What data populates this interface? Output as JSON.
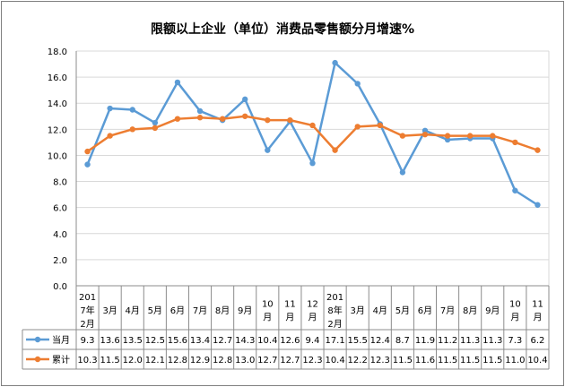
{
  "chart_data": {
    "type": "line",
    "title": "限额以上企业（单位）消费品零售额分月增速%",
    "categories": [
      [
        "201",
        "7年",
        "2月"
      ],
      [
        "3月"
      ],
      [
        "4月"
      ],
      [
        "5月"
      ],
      [
        "6月"
      ],
      [
        "7月"
      ],
      [
        "8月"
      ],
      [
        "9月"
      ],
      [
        "10",
        "月"
      ],
      [
        "11",
        "月"
      ],
      [
        "12",
        "月"
      ],
      [
        "201",
        "8年",
        "2月"
      ],
      [
        "3月"
      ],
      [
        "4月"
      ],
      [
        "5月"
      ],
      [
        "6月"
      ],
      [
        "7月"
      ],
      [
        "8月"
      ],
      [
        "9月"
      ],
      [
        "10",
        "月"
      ],
      [
        "11",
        "月"
      ]
    ],
    "ylim": [
      0,
      18
    ],
    "yticks": [
      "0.0",
      "2.0",
      "4.0",
      "6.0",
      "8.0",
      "10.0",
      "12.0",
      "14.0",
      "16.0",
      "18.0"
    ],
    "grid": true,
    "legend": "table",
    "series": [
      {
        "name": "当月",
        "color": "#5b9bd5",
        "values": [
          9.3,
          13.6,
          13.5,
          12.5,
          15.6,
          13.4,
          12.7,
          14.3,
          10.4,
          12.6,
          9.4,
          17.1,
          15.5,
          12.4,
          8.7,
          11.9,
          11.2,
          11.3,
          11.3,
          7.3,
          6.2
        ],
        "labels": [
          "9.3",
          "13.6",
          "13.5",
          "12.5",
          "15.6",
          "13.4",
          "12.7",
          "14.3",
          "10.4",
          "12.6",
          "9.4",
          "17.1",
          "15.5",
          "12.4",
          "8.7",
          "11.9",
          "11.2",
          "11.3",
          "11.3",
          "7.3",
          "6.2"
        ]
      },
      {
        "name": "累计",
        "color": "#ed7d31",
        "values": [
          10.3,
          11.5,
          12.0,
          12.1,
          12.8,
          12.9,
          12.8,
          13.0,
          12.7,
          12.7,
          12.3,
          10.4,
          12.2,
          12.3,
          11.5,
          11.6,
          11.5,
          11.5,
          11.5,
          11.0,
          10.4
        ],
        "labels": [
          "10.3",
          "11.5",
          "12.0",
          "12.1",
          "12.8",
          "12.9",
          "12.8",
          "13.0",
          "12.7",
          "12.7",
          "12.3",
          "10.4",
          "12.2",
          "12.3",
          "11.5",
          "11.6",
          "11.5",
          "11.5",
          "11.5",
          "11.0",
          "10.4"
        ]
      }
    ]
  }
}
